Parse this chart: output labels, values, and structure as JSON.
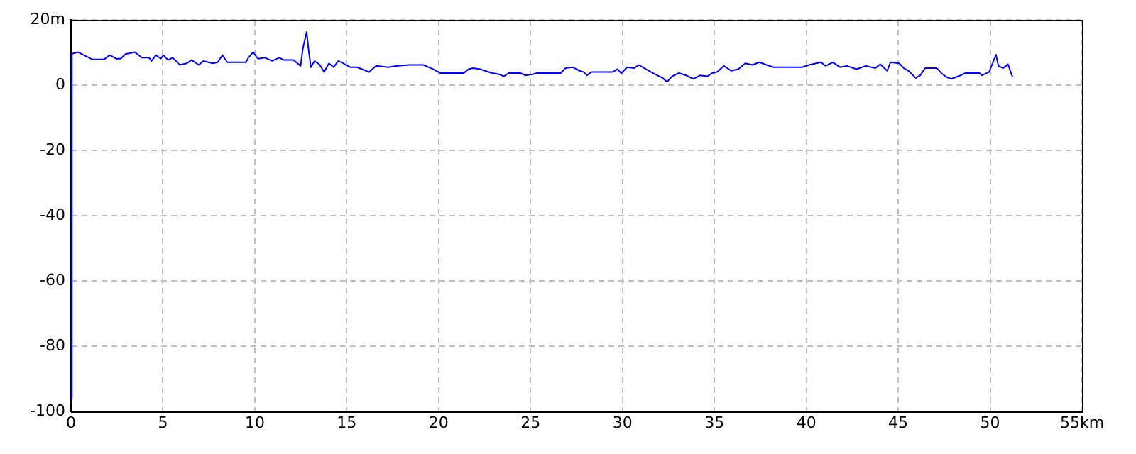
{
  "chart_data": {
    "type": "line",
    "x": [
      0,
      0.05,
      0.39,
      0.77,
      1.16,
      1.8,
      2.1,
      2.45,
      2.7,
      2.96,
      3.47,
      3.86,
      4.25,
      4.38,
      4.63,
      4.89,
      5.02,
      5.28,
      5.53,
      5.92,
      6.3,
      6.56,
      6.95,
      7.2,
      7.72,
      7.98,
      8.24,
      8.5,
      9.52,
      9.65,
      9.91,
      10.17,
      10.55,
      10.94,
      11.33,
      11.58,
      12.1,
      12.49,
      12.61,
      12.82,
      12.92,
      13.05,
      13.25,
      13.51,
      13.77,
      14.03,
      14.29,
      14.54,
      14.8,
      15.19,
      15.57,
      15.83,
      16.22,
      16.6,
      17.25,
      17.76,
      18.4,
      19.17,
      19.69,
      20.08,
      21.37,
      21.62,
      21.88,
      22.26,
      22.52,
      22.91,
      23.3,
      23.55,
      23.81,
      24.45,
      24.71,
      25.1,
      25.35,
      26.64,
      26.9,
      27.28,
      27.67,
      27.9,
      28.06,
      28.3,
      29.47,
      29.73,
      29.93,
      30.25,
      30.63,
      30.89,
      31.27,
      31.79,
      32.18,
      32.43,
      32.69,
      33.07,
      33.46,
      33.85,
      34.23,
      34.62,
      34.88,
      35.14,
      35.52,
      35.91,
      36.3,
      36.68,
      37.07,
      37.45,
      37.84,
      38.22,
      39.77,
      40.15,
      40.8,
      41.05,
      41.44,
      41.83,
      42.21,
      42.73,
      43.24,
      43.76,
      44.02,
      44.4,
      44.58,
      45.05,
      45.31,
      45.56,
      45.95,
      46.2,
      46.46,
      47.1,
      47.36,
      47.62,
      47.88,
      48.39,
      48.65,
      49.42,
      49.55,
      49.94,
      50.32,
      50.45,
      50.71,
      50.97,
      51.22
    ],
    "series": [
      {
        "color": "#0000ff",
        "values": [
          -96,
          9.6,
          10.1,
          9,
          7.9,
          7.9,
          9.2,
          8.1,
          8.1,
          9.5,
          10.1,
          8.4,
          8.4,
          7.4,
          9.2,
          8.1,
          9.2,
          7.7,
          8.4,
          6.2,
          6.7,
          7.7,
          6.2,
          7.4,
          6.7,
          7,
          9.2,
          7,
          7,
          8.4,
          10.1,
          8.1,
          8.4,
          7.4,
          8.4,
          7.7,
          7.7,
          5.9,
          11.1,
          16.3,
          11.1,
          5.5,
          7.4,
          6.4,
          4,
          6.7,
          5.5,
          7.4,
          6.7,
          5.5,
          5.5,
          4.9,
          4,
          5.9,
          5.5,
          5.9,
          6.2,
          6.2,
          4.9,
          3.7,
          3.7,
          4.9,
          5.2,
          4.9,
          4.4,
          3.7,
          3.3,
          2.7,
          3.7,
          3.7,
          3,
          3.3,
          3.7,
          3.7,
          5.2,
          5.5,
          4.4,
          4,
          3,
          4,
          4,
          4.9,
          3.6,
          5.5,
          5.2,
          6.2,
          4.9,
          3.3,
          2.2,
          1,
          2.7,
          3.7,
          3,
          1.9,
          3,
          2.7,
          3.7,
          4,
          5.9,
          4.4,
          4.9,
          6.7,
          6.2,
          7,
          6.2,
          5.5,
          5.5,
          6.2,
          7,
          5.9,
          7,
          5.5,
          5.9,
          4.9,
          5.9,
          5.2,
          6.4,
          4.4,
          7,
          6.7,
          5.2,
          4.4,
          2.2,
          3,
          5.2,
          5.2,
          3.6,
          2.5,
          1.9,
          3,
          3.7,
          3.7,
          3,
          4,
          9.3,
          5.9,
          5.2,
          6.4,
          2.5
        ]
      }
    ],
    "xlim": [
      0,
      55
    ],
    "xticks": [
      0,
      5,
      10,
      15,
      20,
      25,
      30,
      35,
      40,
      45,
      50,
      {
        "value": 55,
        "label": "55km"
      }
    ],
    "ylim": [
      -100,
      20
    ],
    "yticks": [
      -100,
      -80,
      -60,
      -40,
      -20,
      0,
      {
        "value": 20,
        "label": "20m"
      }
    ],
    "grid": true,
    "legend": false,
    "marker": "none",
    "line_style": "solid"
  }
}
